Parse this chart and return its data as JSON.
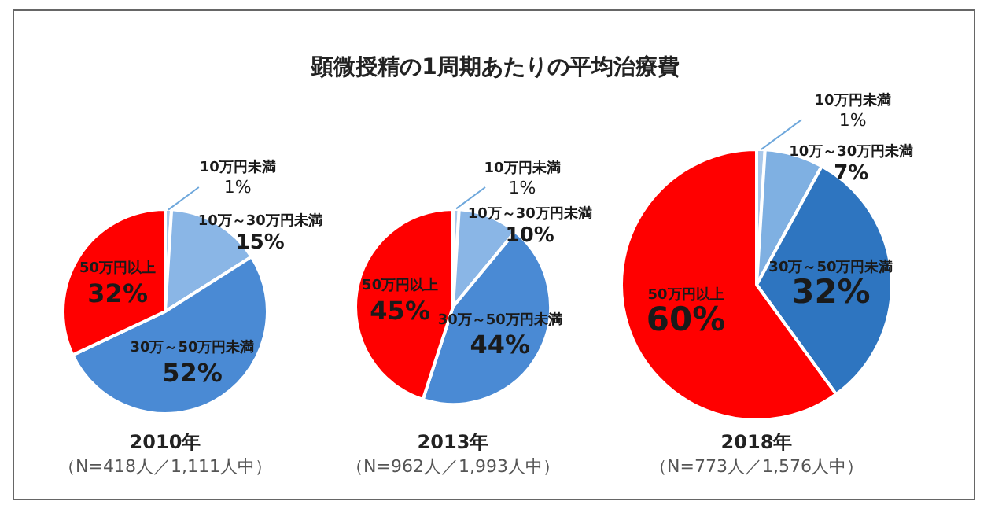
{
  "chart_data": [
    {
      "type": "other",
      "title": "顕微授精の1周期あたりの平均治療費"
    },
    {
      "type": "pie",
      "title": "2010年",
      "subtitle": "（N=418人／1,111人中）",
      "categories": [
        "10万円未満",
        "10万～30万円未満",
        "30万～50万円未満",
        "50万円以上"
      ],
      "values": [
        1,
        15,
        52,
        32
      ],
      "colors": [
        "#a9c8ea",
        "#8ab6e6",
        "#4a8ad4",
        "#ff0000"
      ],
      "value_labels": [
        "1%",
        "15%",
        "52%",
        "32%"
      ]
    },
    {
      "type": "pie",
      "title": "2013年",
      "subtitle": "（N=962人／1,993人中）",
      "categories": [
        "10万円未満",
        "10万～30万円未満",
        "30万～50万円未満",
        "50万円以上"
      ],
      "values": [
        1,
        10,
        44,
        45
      ],
      "colors": [
        "#a9c8ea",
        "#8ab6e6",
        "#4a8ad4",
        "#ff0000"
      ],
      "value_labels": [
        "1%",
        "10%",
        "44%",
        "45%"
      ]
    },
    {
      "type": "pie",
      "title": "2018年",
      "subtitle": "（N=773人／1,576人中）",
      "categories": [
        "10万円未満",
        "10万～30万円未満",
        "30万～50万円未満",
        "50万円以上"
      ],
      "values": [
        1,
        7,
        32,
        60
      ],
      "colors": [
        "#a9c8ea",
        "#7fb0e2",
        "#2e75c0",
        "#ff0000"
      ],
      "value_labels": [
        "1%",
        "7%",
        "32%",
        "60%"
      ]
    }
  ]
}
